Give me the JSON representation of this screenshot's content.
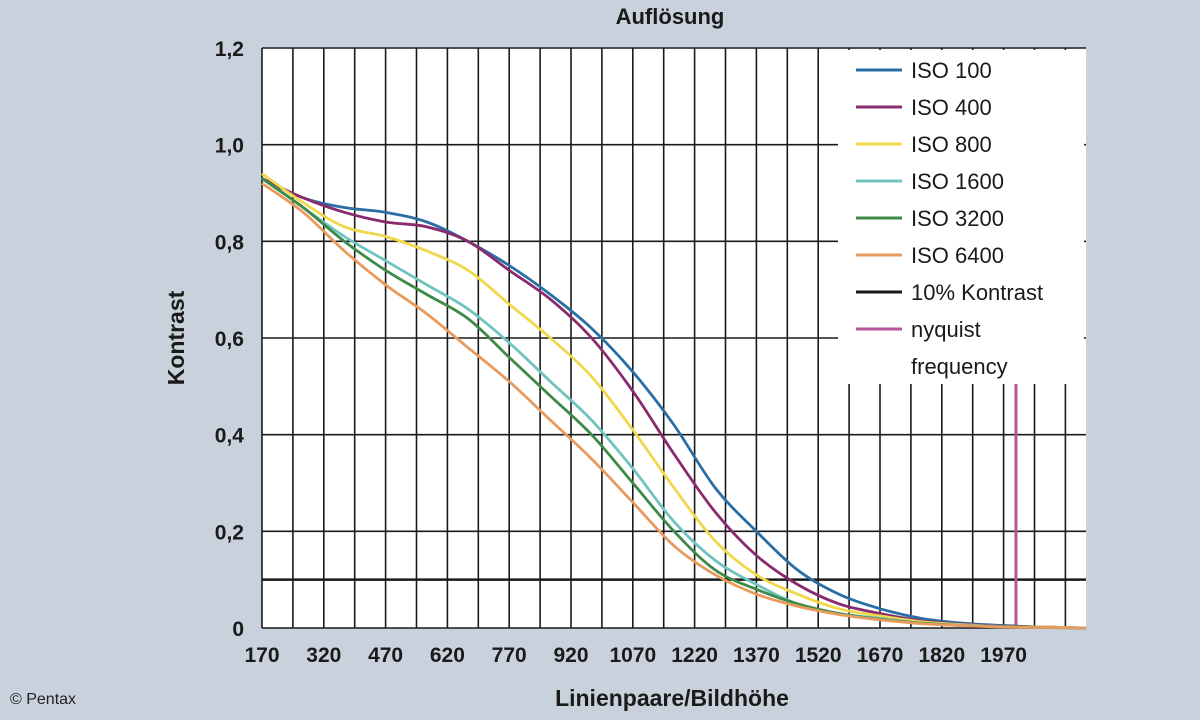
{
  "credit": "© Pentax",
  "chart_data": {
    "type": "line",
    "title": "Auflösung",
    "xlabel": "Linienpaare/Bildhöhe",
    "ylabel": "Kontrast",
    "xlim": [
      170,
      2170
    ],
    "ylim": [
      0,
      1.2
    ],
    "x_ticks": [
      170,
      320,
      470,
      620,
      770,
      920,
      1070,
      1220,
      1370,
      1520,
      1670,
      1820,
      1970
    ],
    "y_ticks": [
      {
        "value": 0,
        "label": "0"
      },
      {
        "value": 0.2,
        "label": "0,2"
      },
      {
        "value": 0.4,
        "label": "0,4"
      },
      {
        "value": 0.6,
        "label": "0,6"
      },
      {
        "value": 0.8,
        "label": "0,8"
      },
      {
        "value": 1.0,
        "label": "1,0"
      },
      {
        "value": 1.2,
        "label": "1,2"
      }
    ],
    "grid": true,
    "legend_position": "top-right",
    "x": [
      170,
      270,
      370,
      470,
      570,
      670,
      770,
      870,
      970,
      1070,
      1170,
      1270,
      1370,
      1470,
      1570,
      1670,
      1770,
      1870,
      1970,
      2070,
      2170
    ],
    "series": [
      {
        "name": "ISO 100",
        "color": "#2a6ea6",
        "values": [
          0.93,
          0.89,
          0.87,
          0.86,
          0.84,
          0.8,
          0.75,
          0.69,
          0.62,
          0.53,
          0.42,
          0.29,
          0.2,
          0.12,
          0.07,
          0.04,
          0.02,
          0.01,
          0.005,
          0.002,
          0.0
        ]
      },
      {
        "name": "ISO 400",
        "color": "#8a2a6e",
        "values": [
          0.93,
          0.89,
          0.86,
          0.84,
          0.83,
          0.8,
          0.74,
          0.68,
          0.6,
          0.49,
          0.36,
          0.24,
          0.15,
          0.09,
          0.05,
          0.03,
          0.015,
          0.008,
          0.004,
          0.002,
          0.0
        ]
      },
      {
        "name": "ISO 800",
        "color": "#f0d84a",
        "values": [
          0.94,
          0.88,
          0.83,
          0.81,
          0.78,
          0.74,
          0.67,
          0.6,
          0.52,
          0.41,
          0.29,
          0.18,
          0.11,
          0.07,
          0.04,
          0.025,
          0.013,
          0.007,
          0.003,
          0.002,
          0.0
        ]
      },
      {
        "name": "ISO 1600",
        "color": "#6fc4c0",
        "values": [
          0.93,
          0.87,
          0.81,
          0.76,
          0.71,
          0.66,
          0.59,
          0.51,
          0.43,
          0.33,
          0.22,
          0.14,
          0.09,
          0.05,
          0.03,
          0.02,
          0.01,
          0.006,
          0.003,
          0.001,
          0.0
        ]
      },
      {
        "name": "ISO 3200",
        "color": "#3e8a48",
        "values": [
          0.93,
          0.87,
          0.8,
          0.74,
          0.69,
          0.64,
          0.56,
          0.48,
          0.4,
          0.3,
          0.2,
          0.12,
          0.08,
          0.05,
          0.03,
          0.018,
          0.01,
          0.005,
          0.003,
          0.001,
          0.0
        ]
      },
      {
        "name": "ISO 6400",
        "color": "#e99b5d",
        "values": [
          0.92,
          0.86,
          0.78,
          0.71,
          0.65,
          0.58,
          0.51,
          0.43,
          0.35,
          0.26,
          0.17,
          0.11,
          0.07,
          0.045,
          0.028,
          0.017,
          0.009,
          0.005,
          0.002,
          0.001,
          0.0
        ]
      }
    ],
    "reference_lines": [
      {
        "name": "10% Kontrast",
        "color": "#1a1a1a",
        "orientation": "horizontal",
        "value": 0.1
      },
      {
        "name": "nyquist frequency",
        "color": "#b8549a",
        "orientation": "vertical",
        "value": 2000
      }
    ],
    "legend": [
      {
        "label": "ISO 100",
        "color": "#2a6ea6"
      },
      {
        "label": "ISO 400",
        "color": "#8a2a6e"
      },
      {
        "label": "ISO 800",
        "color": "#f0d84a"
      },
      {
        "label": "ISO 1600",
        "color": "#6fc4c0"
      },
      {
        "label": "ISO 3200",
        "color": "#3e8a48"
      },
      {
        "label": "ISO 6400",
        "color": "#e99b5d"
      },
      {
        "label": "10% Kontrast",
        "color": "#1a1a1a"
      },
      {
        "label": "nyquist",
        "label2": "frequency",
        "color": "#b8549a"
      }
    ]
  }
}
